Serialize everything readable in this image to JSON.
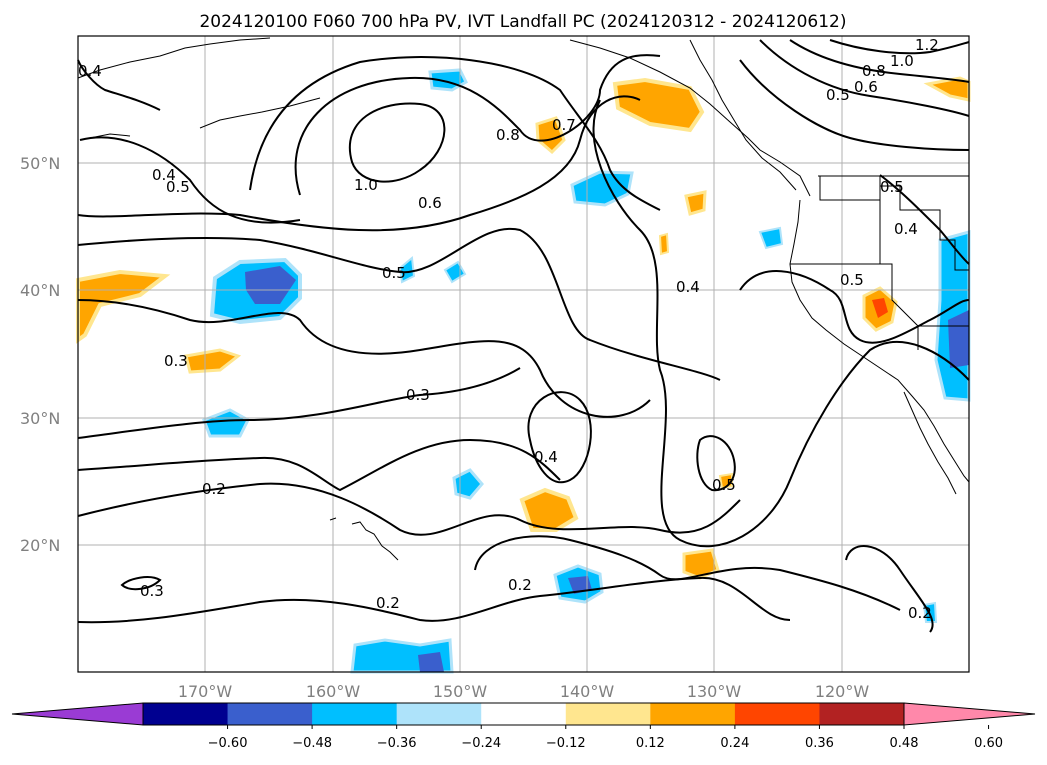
{
  "title": "2024120100 F060 700 hPa PV, IVT Landfall PC (2024120312 - 2024120612)",
  "axes": {
    "lon_ticks": [
      "170°W",
      "160°W",
      "150°W",
      "140°W",
      "130°W",
      "120°W"
    ],
    "lat_ticks": [
      "50°N",
      "40°N",
      "30°N",
      "20°N"
    ]
  },
  "colorbar": {
    "ticks": [
      "−0.60",
      "−0.48",
      "−0.36",
      "−0.24",
      "−0.12",
      "0.12",
      "0.24",
      "0.36",
      "0.48",
      "0.60"
    ],
    "colors": [
      "#9a3bd4",
      "#000090",
      "#3a5fcd",
      "#00bfff",
      "#aee3fa",
      "#ffffff",
      "#ffe68f",
      "#ffa500",
      "#ff4500",
      "#b22222",
      "#ff88aa"
    ]
  },
  "contour_labels": [
    "1.2",
    "1.0",
    "0.8",
    "0.6",
    "0.5",
    "0.4",
    "0.4",
    "0.5",
    "0.5",
    "0.4",
    "0.5",
    "1.0",
    "0.8",
    "0.7",
    "0.6",
    "0.5",
    "0.4",
    "0.3",
    "0.3",
    "0.4",
    "0.5",
    "0.2",
    "0.3",
    "0.2",
    "0.2",
    "0.2"
  ]
}
